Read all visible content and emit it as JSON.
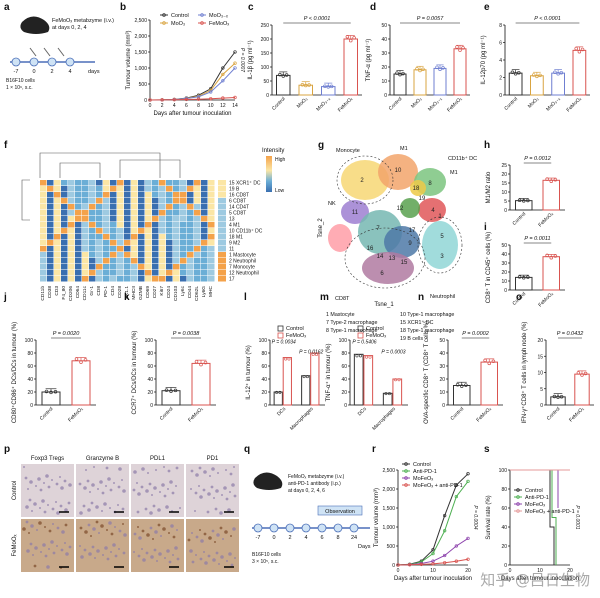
{
  "panel_letters": [
    "a",
    "b",
    "c",
    "d",
    "e",
    "f",
    "g",
    "h",
    "i",
    "j",
    "k",
    "l",
    "m",
    "n",
    "o",
    "p",
    "q",
    "r",
    "s"
  ],
  "schematic_a": {
    "label": "FeMoOₓ metabzyme (i.v.)\nat days 0, 2, 4",
    "line1": "FeMoOₓ metabzyme (i.v.)",
    "line2": "at days 0, 2, 4",
    "days": [
      "-7",
      "0",
      "2",
      "4"
    ],
    "days_word": "days",
    "cells1": "B16F10 cells",
    "cells2": "1 × 10⁶, s.c."
  },
  "schematic_q": {
    "line1": "FeMoOₓ metabzyme (i.v.)",
    "line2": "anti-PD-1 antibody (i.p.)",
    "line3": "at days 0, 2, 4, 6",
    "observation": "Observation",
    "days": [
      "-7",
      "0",
      "2",
      "4",
      "6",
      "8",
      "24"
    ],
    "days_word": "Days",
    "cells1": "B16F10 cells",
    "cells2": "3 × 10⁵, s.c."
  },
  "colors": {
    "control": "#333333",
    "moo3": "#d9a441",
    "moo3x": "#6f7fd1",
    "femoox": "#d9534f",
    "pink": "#e59a9a",
    "anti_pd1": "#4caf50",
    "combo": "#8e44ad"
  },
  "chart_data": [
    {
      "id": "b",
      "type": "line",
      "xlabel": "Days after tumour inoculation",
      "ylabel": "Tumour volume (mm³)",
      "x": [
        0,
        2,
        4,
        6,
        8,
        10,
        12,
        14
      ],
      "ylim": [
        0,
        2500
      ],
      "yticks": [
        "0",
        "500",
        "1,000",
        "1,500",
        "2,000",
        "2,500"
      ],
      "xticks": [
        "0",
        "2",
        "4",
        "6",
        "8",
        "10",
        "12",
        "14"
      ],
      "annotation": "P = 0.0007",
      "series": [
        {
          "name": "Control",
          "values": [
            0,
            5,
            20,
            60,
            150,
            350,
            1000,
            1500
          ]
        },
        {
          "name": "MoO₃",
          "values": [
            0,
            5,
            18,
            50,
            120,
            300,
            800,
            1150
          ]
        },
        {
          "name": "MoO₃₋ₓ",
          "values": [
            0,
            5,
            15,
            45,
            100,
            250,
            600,
            1000
          ]
        },
        {
          "name": "FeMoOₓ",
          "values": [
            0,
            3,
            8,
            15,
            25,
            40,
            60,
            80
          ]
        }
      ]
    },
    {
      "id": "c",
      "type": "bar",
      "ylabel": "IL-1β (pg ml⁻¹)",
      "categories": [
        "Control",
        "MoO₃",
        "MoO₃₋ₓ",
        "FeMoOₓ"
      ],
      "values": [
        70,
        35,
        30,
        200
      ],
      "ylim": [
        0,
        250
      ],
      "yticks": [
        "0",
        "50",
        "100",
        "150",
        "200",
        "250"
      ],
      "annotation": "P < 0.0001"
    },
    {
      "id": "d",
      "type": "bar",
      "ylabel": "TNF-α (pg ml⁻¹)",
      "categories": [
        "Control",
        "MoO₃",
        "MoO₃₋ₓ",
        "FeMoOₓ"
      ],
      "values": [
        15,
        18,
        19,
        33
      ],
      "ylim": [
        0,
        50
      ],
      "yticks": [
        "0",
        "10",
        "20",
        "30",
        "40",
        "50"
      ],
      "annotation": "P = 0.0057"
    },
    {
      "id": "e",
      "type": "bar",
      "ylabel": "IL-12p70 (pg ml⁻¹)",
      "categories": [
        "Control",
        "MoO₃",
        "MoO₃₋ₓ",
        "FeMoOₓ"
      ],
      "values": [
        2.5,
        2.2,
        2.5,
        5.1
      ],
      "ylim": [
        0,
        8
      ],
      "yticks": [
        "0",
        "2",
        "4",
        "6",
        "8"
      ],
      "annotation": "P < 0.0001"
    },
    {
      "id": "h",
      "type": "bar",
      "ylabel": "M1/M2 ratio",
      "categories": [
        "Control",
        "FeMoOₓ"
      ],
      "values": [
        5.2,
        16.5
      ],
      "ylim": [
        0,
        25
      ],
      "yticks": [
        "0",
        "5",
        "10",
        "15",
        "20",
        "25"
      ],
      "annotation": "P = 0.0012"
    },
    {
      "id": "i",
      "type": "bar",
      "ylabel": "CD8⁺ T in CD45⁺ cells (%)",
      "categories": [
        "Control",
        "FeMoOₓ"
      ],
      "values": [
        14,
        37
      ],
      "ylim": [
        0,
        50
      ],
      "yticks": [
        "0",
        "10",
        "20",
        "30",
        "40",
        "50"
      ],
      "annotation": "P = 0.0011"
    },
    {
      "id": "j",
      "type": "bar",
      "ylabel": "CD80⁺CD86⁺ DCs/DCs in tumour (%)",
      "categories": [
        "Control",
        "FeMoOₓ"
      ],
      "values": [
        20,
        68
      ],
      "ylim": [
        0,
        100
      ],
      "yticks": [
        "0",
        "20",
        "40",
        "60",
        "80",
        "100"
      ],
      "annotation": "P = 0.0020"
    },
    {
      "id": "k",
      "type": "bar",
      "ylabel": "CCR7⁺ DCs/DCs in tumour (%)",
      "categories": [
        "Control",
        "FeMoOₓ"
      ],
      "values": [
        22,
        64
      ],
      "ylim": [
        0,
        100
      ],
      "yticks": [
        "0",
        "20",
        "40",
        "60",
        "80",
        "100"
      ],
      "annotation": "P = 0.0038"
    },
    {
      "id": "l",
      "type": "bar",
      "ylabel": "IL-12⁺ in tumour (%)",
      "categories": [
        "DCs",
        "Macrophages"
      ],
      "series": [
        {
          "name": "Control",
          "values": [
            20,
            45
          ]
        },
        {
          "name": "FeMoOₓ",
          "values": [
            73,
            80
          ]
        }
      ],
      "ylim": [
        0,
        100
      ],
      "yticks": [
        "0",
        "20",
        "40",
        "60",
        "80",
        "100"
      ],
      "annotations": [
        "P = 0.0034",
        "P = 0.0162"
      ]
    },
    {
      "id": "m",
      "type": "bar",
      "ylabel": "TNF-α⁺ in tumour (%)",
      "categories": [
        "DCs",
        "Macrophages"
      ],
      "series": [
        {
          "name": "Control",
          "values": [
            78,
            18
          ]
        },
        {
          "name": "FeMoOₓ",
          "values": [
            76,
            40
          ]
        }
      ],
      "ylim": [
        0,
        100
      ],
      "yticks": [
        "0",
        "20",
        "40",
        "60",
        "80",
        "100"
      ],
      "annotations": [
        "P = 0.5406",
        "P = 0.0003"
      ]
    },
    {
      "id": "n",
      "type": "bar",
      "ylabel": "OVA-specific CD8⁺ T (CD8⁺ T cells %)",
      "categories": [
        "Control",
        "FeMoOₓ"
      ],
      "values": [
        15,
        33
      ],
      "ylim": [
        0,
        50
      ],
      "yticks": [
        "0",
        "10",
        "20",
        "30",
        "40",
        "50"
      ],
      "annotation": "P = 0.0002"
    },
    {
      "id": "o",
      "type": "bar",
      "ylabel": "IFN-γ⁺CD8⁺ T cells in lymph node (%)",
      "categories": [
        "Control",
        "FeMoOₓ"
      ],
      "values": [
        2.5,
        9.5
      ],
      "ylim": [
        0,
        20
      ],
      "yticks": [
        "0",
        "5",
        "10",
        "15",
        "20"
      ],
      "annotation": "P = 0.0432"
    },
    {
      "id": "r",
      "type": "line",
      "xlabel": "Days after tumour inoculation",
      "ylabel": "Tumour volume (mm³)",
      "x": [
        0,
        4,
        8,
        12,
        16,
        20,
        24
      ],
      "ylim": [
        0,
        2500
      ],
      "yticks": [
        "0",
        "500",
        "1,000",
        "1,500",
        "2,000",
        "2,500"
      ],
      "xticks": [
        "0",
        "10",
        "20"
      ],
      "annotation": "P = 0.0004",
      "series": [
        {
          "name": "Control",
          "values": [
            0,
            20,
            100,
            400,
            1300,
            2100,
            2400
          ]
        },
        {
          "name": "Anti-PD-1",
          "values": [
            0,
            15,
            80,
            300,
            900,
            1800,
            2200
          ]
        },
        {
          "name": "MoFeOₓ",
          "values": [
            0,
            10,
            40,
            100,
            250,
            500,
            700
          ]
        },
        {
          "name": "MoFeOₓ + anti-PD-1",
          "values": [
            0,
            5,
            15,
            30,
            60,
            100,
            150
          ]
        }
      ]
    },
    {
      "id": "s",
      "type": "line",
      "step": true,
      "xlabel": "Days after tumour inoculation",
      "ylabel": "Survival rate (%)",
      "ylim": [
        0,
        100
      ],
      "yticks": [
        "0",
        "20",
        "40",
        "60",
        "80",
        "100"
      ],
      "xticks": [
        "0",
        "10",
        "20"
      ],
      "annotation": "P = 0.0001",
      "series": [
        {
          "name": "Control",
          "x": [
            0,
            18,
            20,
            22
          ],
          "values": [
            100,
            100,
            40,
            0
          ]
        },
        {
          "name": "Anti-PD-1",
          "x": [
            0,
            19,
            21,
            23
          ],
          "values": [
            100,
            100,
            50,
            0
          ]
        },
        {
          "name": "MoFeOₓ",
          "x": [
            0,
            21,
            24
          ],
          "values": [
            100,
            100,
            60
          ]
        },
        {
          "name": "MoFeOₓ + anti-PD-1",
          "x": [
            0,
            30
          ],
          "values": [
            100,
            100
          ]
        }
      ]
    }
  ],
  "heatmap_f": {
    "legend_title": "Intensity",
    "legend_high": "High",
    "legend_low": "Low",
    "row_labels": [
      "15 XCR1⁺ DC",
      "19 B",
      "16 CD8T",
      "6 CD8T",
      "14 CD4T",
      "5 CD8T",
      "13",
      "4 M1",
      "10 CD11b⁺ DC",
      "18 M1",
      "9 M2",
      "11",
      "1 Mastocyte",
      "2 Neutrophil",
      "7 Monocyte",
      "12 Neutrophil",
      "17"
    ],
    "col_labels": [
      "CD11b",
      "CD38",
      "CD3",
      "F4_80",
      "CD206",
      "CD64",
      "CD11c",
      "Gr-1",
      "CD8",
      "PD-1",
      "CD4",
      "CD28",
      "NK1.1",
      "MHCII",
      "GZMB",
      "CD69",
      "CD27",
      "Ki67",
      "CD24",
      "CD103",
      "Ly6c",
      "CD44",
      "CD62L",
      "Ly6G",
      "MHC"
    ]
  },
  "tsne_g": {
    "xlabel": "Tsne_1",
    "ylabel": "Tsne_2",
    "cluster_labels": [
      "Monocyte",
      "M1",
      "CD11b⁺ DC",
      "M1",
      "NK",
      "CD8T",
      "Neutrophil"
    ],
    "cluster_numbers": [
      "1",
      "2",
      "3",
      "4",
      "5",
      "6",
      "7",
      "8",
      "9",
      "10",
      "11",
      "12",
      "13",
      "14",
      "15",
      "16",
      "17",
      "18",
      "19"
    ],
    "legend": [
      "1 Mastocyte",
      "7 Type-2 macrophage",
      "8 Type-1 macrophage",
      "10 Type-1 macrophage",
      "15 XCR1⁺ DC",
      "18 Type-1 macrophage",
      "19 B cells"
    ]
  },
  "histology_p": {
    "columns": [
      "Foxp3 Tregs",
      "Granzyme B",
      "PDL1",
      "PD1"
    ],
    "rows": [
      "Control",
      "FeMoOₓ"
    ]
  },
  "watermark": "知乎 @吕日生物"
}
